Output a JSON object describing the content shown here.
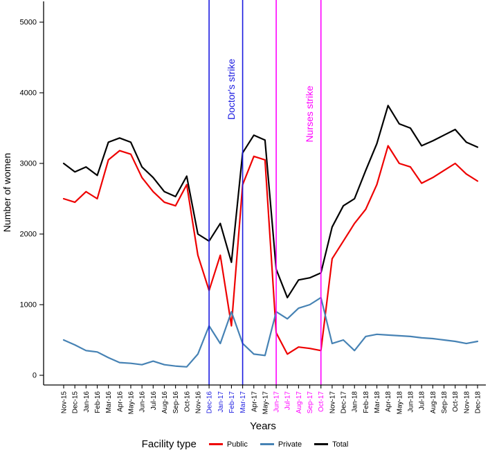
{
  "chart_data": {
    "type": "line",
    "title": "",
    "xlabel": "Years",
    "ylabel": "Number of women",
    "ylim": [
      0,
      5000
    ],
    "yticks": [
      0,
      1000,
      2000,
      3000,
      4000,
      5000
    ],
    "grid": false,
    "legend_position": "bottom",
    "x_axis_label_rotation_deg": 90,
    "categories": [
      "Nov-15",
      "Dec-15",
      "Jan-16",
      "Feb-16",
      "Mar-16",
      "Apr-16",
      "May-16",
      "Jun-16",
      "Jul-16",
      "Aug-16",
      "Sep-16",
      "Oct-16",
      "Nov-16",
      "Dec-16",
      "Jan-17",
      "Feb-17",
      "Mar-17",
      "Apr-17",
      "May-17",
      "Jun-17",
      "Jul-17",
      "Aug-17",
      "Sep-17",
      "Oct-17",
      "Nov-17",
      "Dec-17",
      "Jan-18",
      "Feb-18",
      "Mar-18",
      "Apr-18",
      "May-18",
      "Jun-18",
      "Jul-18",
      "Aug-18",
      "Sep-18",
      "Oct-18",
      "Nov-18",
      "Dec-18"
    ],
    "series": [
      {
        "name": "Public",
        "color": "#ee0000",
        "values": [
          2500,
          2450,
          2600,
          2500,
          3050,
          3180,
          3130,
          2800,
          2600,
          2450,
          2400,
          2700,
          1700,
          1200,
          1700,
          700,
          2700,
          3100,
          3050,
          600,
          300,
          400,
          380,
          350,
          1650,
          1900,
          2150,
          2350,
          2700,
          3250,
          3000,
          2950,
          2720,
          2800,
          2900,
          3000,
          2850,
          2750
        ]
      },
      {
        "name": "Private",
        "color": "#4682b4",
        "values": [
          500,
          430,
          350,
          330,
          250,
          180,
          170,
          150,
          200,
          150,
          130,
          120,
          300,
          700,
          450,
          900,
          450,
          300,
          280,
          900,
          800,
          950,
          1000,
          1100,
          450,
          500,
          350,
          550,
          580,
          570,
          560,
          550,
          530,
          520,
          500,
          480,
          450,
          480
        ]
      },
      {
        "name": "Total",
        "color": "#000000",
        "values": [
          3000,
          2880,
          2950,
          2830,
          3300,
          3360,
          3300,
          2950,
          2800,
          2600,
          2530,
          2820,
          2000,
          1900,
          2150,
          1600,
          3150,
          3400,
          3330,
          1500,
          1100,
          1350,
          1380,
          1450,
          2100,
          2400,
          2500,
          2900,
          3280,
          3820,
          3560,
          3500,
          3250,
          3320,
          3400,
          3480,
          3300,
          3230
        ]
      }
    ],
    "vlines": [
      {
        "x": "Dec-16",
        "color": "#1a1ae0"
      },
      {
        "x": "Mar-17",
        "color": "#1a1ae0"
      },
      {
        "x": "Jun-17",
        "color": "#ff00ff"
      },
      {
        "x": "Oct-17",
        "color": "#ff00ff"
      }
    ],
    "annotations": [
      {
        "text": "Doctor's strike",
        "x": "Feb-17",
        "y": 4050,
        "color": "#1a1ae0"
      },
      {
        "text": "Nurses strike",
        "x": "Sep-17",
        "y": 3700,
        "color": "#ff00ff"
      }
    ],
    "x_tick_colors": {
      "Dec-16": "#1a1ae0",
      "Jan-17": "#1a1ae0",
      "Feb-17": "#1a1ae0",
      "Mar-17": "#1a1ae0",
      "Jun-17": "#ff00ff",
      "Jul-17": "#ff00ff",
      "Aug-17": "#ff00ff",
      "Sep-17": "#ff00ff",
      "Oct-17": "#ff00ff"
    }
  },
  "legend": {
    "title": "Facility type",
    "items": [
      {
        "label": "Public",
        "color": "#ee0000"
      },
      {
        "label": "Private",
        "color": "#4682b4"
      },
      {
        "label": "Total",
        "color": "#000000"
      }
    ]
  }
}
